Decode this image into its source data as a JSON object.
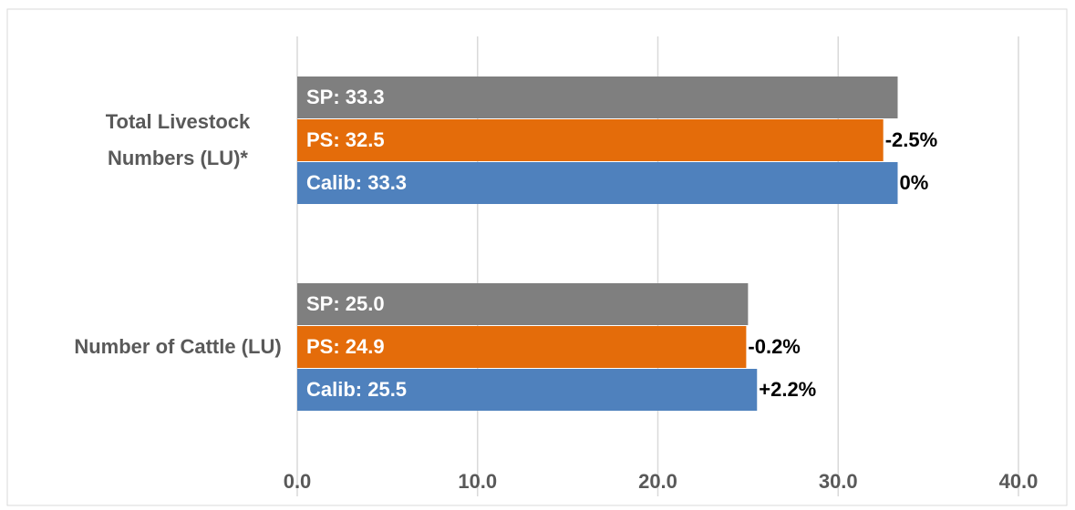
{
  "chart_data": {
    "type": "hbar",
    "categories": [
      "Total Livestock Numbers (LU)*",
      "Number of Cattle (LU)"
    ],
    "series": [
      {
        "name": "SP",
        "color": "#7f7f7f",
        "values": [
          33.3,
          25.0
        ],
        "value_labels": [
          "SP: 33.3",
          "SP: 25.0"
        ]
      },
      {
        "name": "PS",
        "color": "#e46c0a",
        "values": [
          32.5,
          24.9
        ],
        "value_labels": [
          "PS: 32.5",
          "PS: 24.9"
        ],
        "change_labels": [
          "-2.5%",
          "-0.2%"
        ]
      },
      {
        "name": "Calib",
        "color": "#4f81bd",
        "values": [
          33.3,
          25.5
        ],
        "value_labels": [
          "Calib: 33.3",
          "Calib: 25.5"
        ],
        "change_labels": [
          "0%",
          "+2.2%"
        ]
      }
    ],
    "xlim": [
      0,
      40
    ],
    "xticks": [
      {
        "value": 0,
        "label": "0.0"
      },
      {
        "value": 10,
        "label": "10.0"
      },
      {
        "value": 20,
        "label": "20.0"
      },
      {
        "value": 30,
        "label": "30.0"
      },
      {
        "value": 40,
        "label": "40.0"
      }
    ],
    "grid": true
  }
}
